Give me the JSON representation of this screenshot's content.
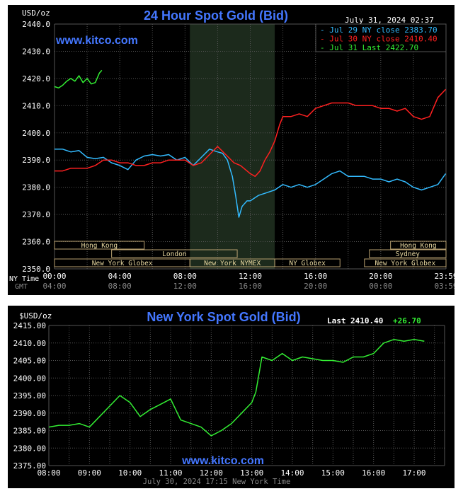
{
  "chart_data": [
    {
      "type": "line",
      "title": "24 Hour Spot Gold (Bid)",
      "ylabel": "USD/oz",
      "watermark": "www.kitco.com",
      "timestamp": "July 31, 2024 02:37",
      "ylim": [
        2350,
        2440
      ],
      "yticks": [
        "2440.0",
        "2430.0",
        "2420.0",
        "2410.0",
        "2400.0",
        "2390.0",
        "2380.0",
        "2370.0",
        "2360.0",
        "2350.0"
      ],
      "xticks": [
        "00:00",
        "04:00",
        "08:00",
        "12:00",
        "16:00",
        "20:00",
        "23:59"
      ],
      "xticks_gmt": [
        "04:00",
        "08:00",
        "12:00",
        "16:00",
        "20:00",
        "00:00",
        "03:59"
      ],
      "xaxis_row_labels": [
        "NY Time",
        "GMT"
      ],
      "grid": true,
      "legend_position": "top-right",
      "shaded_hours": [
        8.3,
        13.5
      ],
      "sessions": [
        {
          "name": "Hong Kong",
          "start": 0,
          "end": 5.5,
          "row": 0
        },
        {
          "name": "Hong Kong",
          "start": 20.6,
          "end": 24,
          "row": 0
        },
        {
          "name": "London",
          "start": 3.5,
          "end": 11.2,
          "row": 1
        },
        {
          "name": "Sydney",
          "start": 19.3,
          "end": 24,
          "row": 1
        },
        {
          "name": "New York Globex",
          "start": 0,
          "end": 8.3,
          "row": 2
        },
        {
          "name": "New York NYMEX",
          "start": 8.3,
          "end": 13.5,
          "row": 2
        },
        {
          "name": "NY Globex",
          "start": 13.5,
          "end": 17.5,
          "row": 2
        },
        {
          "name": "New York Globex",
          "start": 19.0,
          "end": 24,
          "row": 2
        }
      ],
      "series": [
        {
          "name": "Jul 29 NY close 2383.70",
          "color": "#33bbff",
          "x": [
            0,
            0.5,
            1,
            1.5,
            2,
            2.5,
            3,
            3.5,
            4,
            4.5,
            5,
            5.5,
            6,
            6.5,
            7,
            7.5,
            8,
            8.5,
            9,
            9.5,
            10,
            10.3,
            10.6,
            10.9,
            11.1,
            11.3,
            11.5,
            11.8,
            12,
            12.5,
            13,
            13.5,
            14,
            14.5,
            15,
            15.5,
            16,
            16.5,
            17,
            17.5,
            18,
            18.5,
            19,
            19.5,
            20,
            20.5,
            21,
            21.5,
            22,
            22.5,
            23,
            23.5,
            23.98
          ],
          "y": [
            2394,
            2394,
            2393,
            2393.5,
            2391,
            2390.5,
            2391,
            2389,
            2388,
            2386.5,
            2390,
            2391.5,
            2392,
            2391.5,
            2392,
            2390,
            2391,
            2388,
            2391,
            2394,
            2393,
            2392.5,
            2390,
            2384,
            2377,
            2369,
            2373,
            2375,
            2375,
            2377,
            2378,
            2379,
            2381,
            2380,
            2381,
            2380,
            2381,
            2383,
            2385,
            2386,
            2384,
            2384,
            2384,
            2383,
            2383,
            2382,
            2383,
            2382,
            2380,
            2379,
            2380,
            2381,
            2385
          ]
        },
        {
          "name": "Jul 30 NY close 2410.40",
          "color": "#ff2020",
          "x": [
            0,
            0.5,
            1,
            1.5,
            2,
            2.5,
            3,
            3.5,
            4,
            4.5,
            5,
            5.5,
            6,
            6.5,
            7,
            7.5,
            8,
            8.5,
            9,
            9.5,
            10,
            10.5,
            11,
            11.4,
            11.8,
            12,
            12.3,
            12.6,
            12.9,
            13.2,
            13.5,
            13.8,
            14,
            14.5,
            15,
            15.5,
            16,
            16.5,
            17,
            17.5,
            18,
            18.5,
            19,
            19.5,
            20,
            20.5,
            21,
            21.5,
            22,
            22.5,
            23,
            23.5,
            23.98
          ],
          "y": [
            2386,
            2386,
            2387,
            2387,
            2387,
            2388,
            2390,
            2390,
            2389,
            2389,
            2388,
            2388,
            2389,
            2389,
            2390,
            2390,
            2390,
            2388,
            2389,
            2392,
            2395,
            2392,
            2389,
            2388,
            2386,
            2385,
            2384,
            2386,
            2390,
            2393,
            2397,
            2403,
            2406,
            2406,
            2407,
            2406,
            2409,
            2410,
            2411,
            2411,
            2411,
            2410,
            2410,
            2410,
            2409,
            2409,
            2408,
            2409,
            2406,
            2405,
            2406,
            2413,
            2416
          ]
        },
        {
          "name": "Jul 31 Last 2422.70",
          "color": "#33ee33",
          "x": [
            0,
            0.25,
            0.5,
            0.75,
            1,
            1.25,
            1.5,
            1.75,
            2,
            2.25,
            2.5,
            2.75,
            2.9
          ],
          "y": [
            2417,
            2416.5,
            2417.5,
            2419,
            2420,
            2419,
            2421,
            2418.5,
            2420,
            2418,
            2418.5,
            2422,
            2423
          ]
        }
      ]
    },
    {
      "type": "line",
      "title": "New York Spot Gold (Bid)",
      "ylabel": "$USD/oz",
      "watermark": "www.kitco.com",
      "last_label": "Last",
      "last_value": "2410.40",
      "change": "+26.70",
      "footer": "July 30, 2024 17:15 New York Time",
      "ylim": [
        2375,
        2415
      ],
      "yticks": [
        "2415.00",
        "2410.00",
        "2405.00",
        "2400.00",
        "2395.00",
        "2390.00",
        "2385.00",
        "2380.00",
        "2375.00"
      ],
      "xticks": [
        "08:00",
        "09:00",
        "10:00",
        "11:00",
        "12:00",
        "13:00",
        "14:00",
        "15:00",
        "16:00",
        "17:00"
      ],
      "xlim": [
        8,
        17.75
      ],
      "grid": true,
      "series": [
        {
          "name": "",
          "color": "#33ee33",
          "x": [
            8,
            8.25,
            8.5,
            8.75,
            9,
            9.25,
            9.5,
            9.75,
            10,
            10.25,
            10.5,
            10.75,
            11,
            11.25,
            11.5,
            11.75,
            12,
            12.25,
            12.5,
            12.75,
            13,
            13.1,
            13.25,
            13.5,
            13.75,
            14,
            14.25,
            14.5,
            14.75,
            15,
            15.25,
            15.5,
            15.75,
            16,
            16.25,
            16.5,
            16.75,
            17,
            17.25
          ],
          "y": [
            2386,
            2386.5,
            2386.5,
            2387,
            2386,
            2389,
            2392,
            2395,
            2393,
            2389,
            2391,
            2392.5,
            2394,
            2388,
            2387,
            2386,
            2383.5,
            2385,
            2387,
            2390,
            2393,
            2396,
            2406,
            2405,
            2407,
            2405,
            2406,
            2405.5,
            2405,
            2405,
            2404.5,
            2406,
            2406,
            2407,
            2410,
            2411,
            2410.5,
            2411,
            2410.5
          ]
        }
      ]
    }
  ]
}
